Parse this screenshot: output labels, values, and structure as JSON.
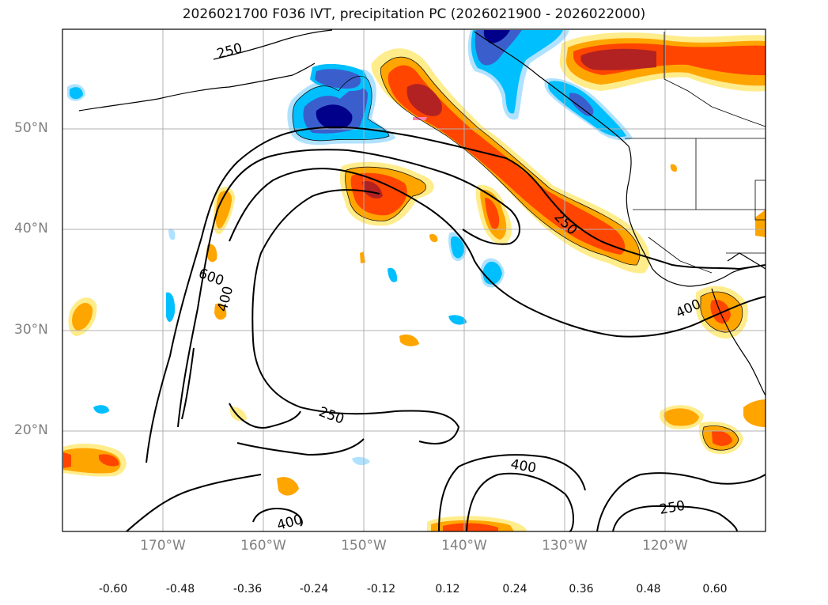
{
  "title": "2026021700 F036 IVT, precipitation PC (2026021900 - 2026022000)",
  "map": {
    "lon_range": [
      -180,
      -110
    ],
    "lat_range": [
      10,
      60
    ],
    "lat_labels": [
      {
        "lat": 50,
        "text": "50°N"
      },
      {
        "lat": 40,
        "text": "40°N"
      },
      {
        "lat": 30,
        "text": "30°N"
      },
      {
        "lat": 20,
        "text": "20°N"
      }
    ],
    "lon_labels": [
      {
        "lon": -170,
        "text": "170°W"
      },
      {
        "lon": -160,
        "text": "160°W"
      },
      {
        "lon": -150,
        "text": "150°W"
      },
      {
        "lon": -140,
        "text": "140°W"
      },
      {
        "lon": -130,
        "text": "130°W"
      },
      {
        "lon": -120,
        "text": "120°W"
      }
    ],
    "contour_labels": [
      "250",
      "250",
      "250",
      "250",
      "400",
      "400",
      "400",
      "400",
      "600"
    ],
    "gridlines": true
  },
  "colorbar": {
    "ticks": [
      "-0.60",
      "-0.48",
      "-0.36",
      "-0.24",
      "-0.12",
      "0.12",
      "0.24",
      "0.36",
      "0.48",
      "0.60"
    ],
    "colors": [
      "#9932cc",
      "#00008b",
      "#3a5fcd",
      "#00bfff",
      "#b0e2ff",
      "#ffffff",
      "#ffec8b",
      "#ffa500",
      "#ff4500",
      "#b22222",
      "#ff82ab"
    ]
  }
}
